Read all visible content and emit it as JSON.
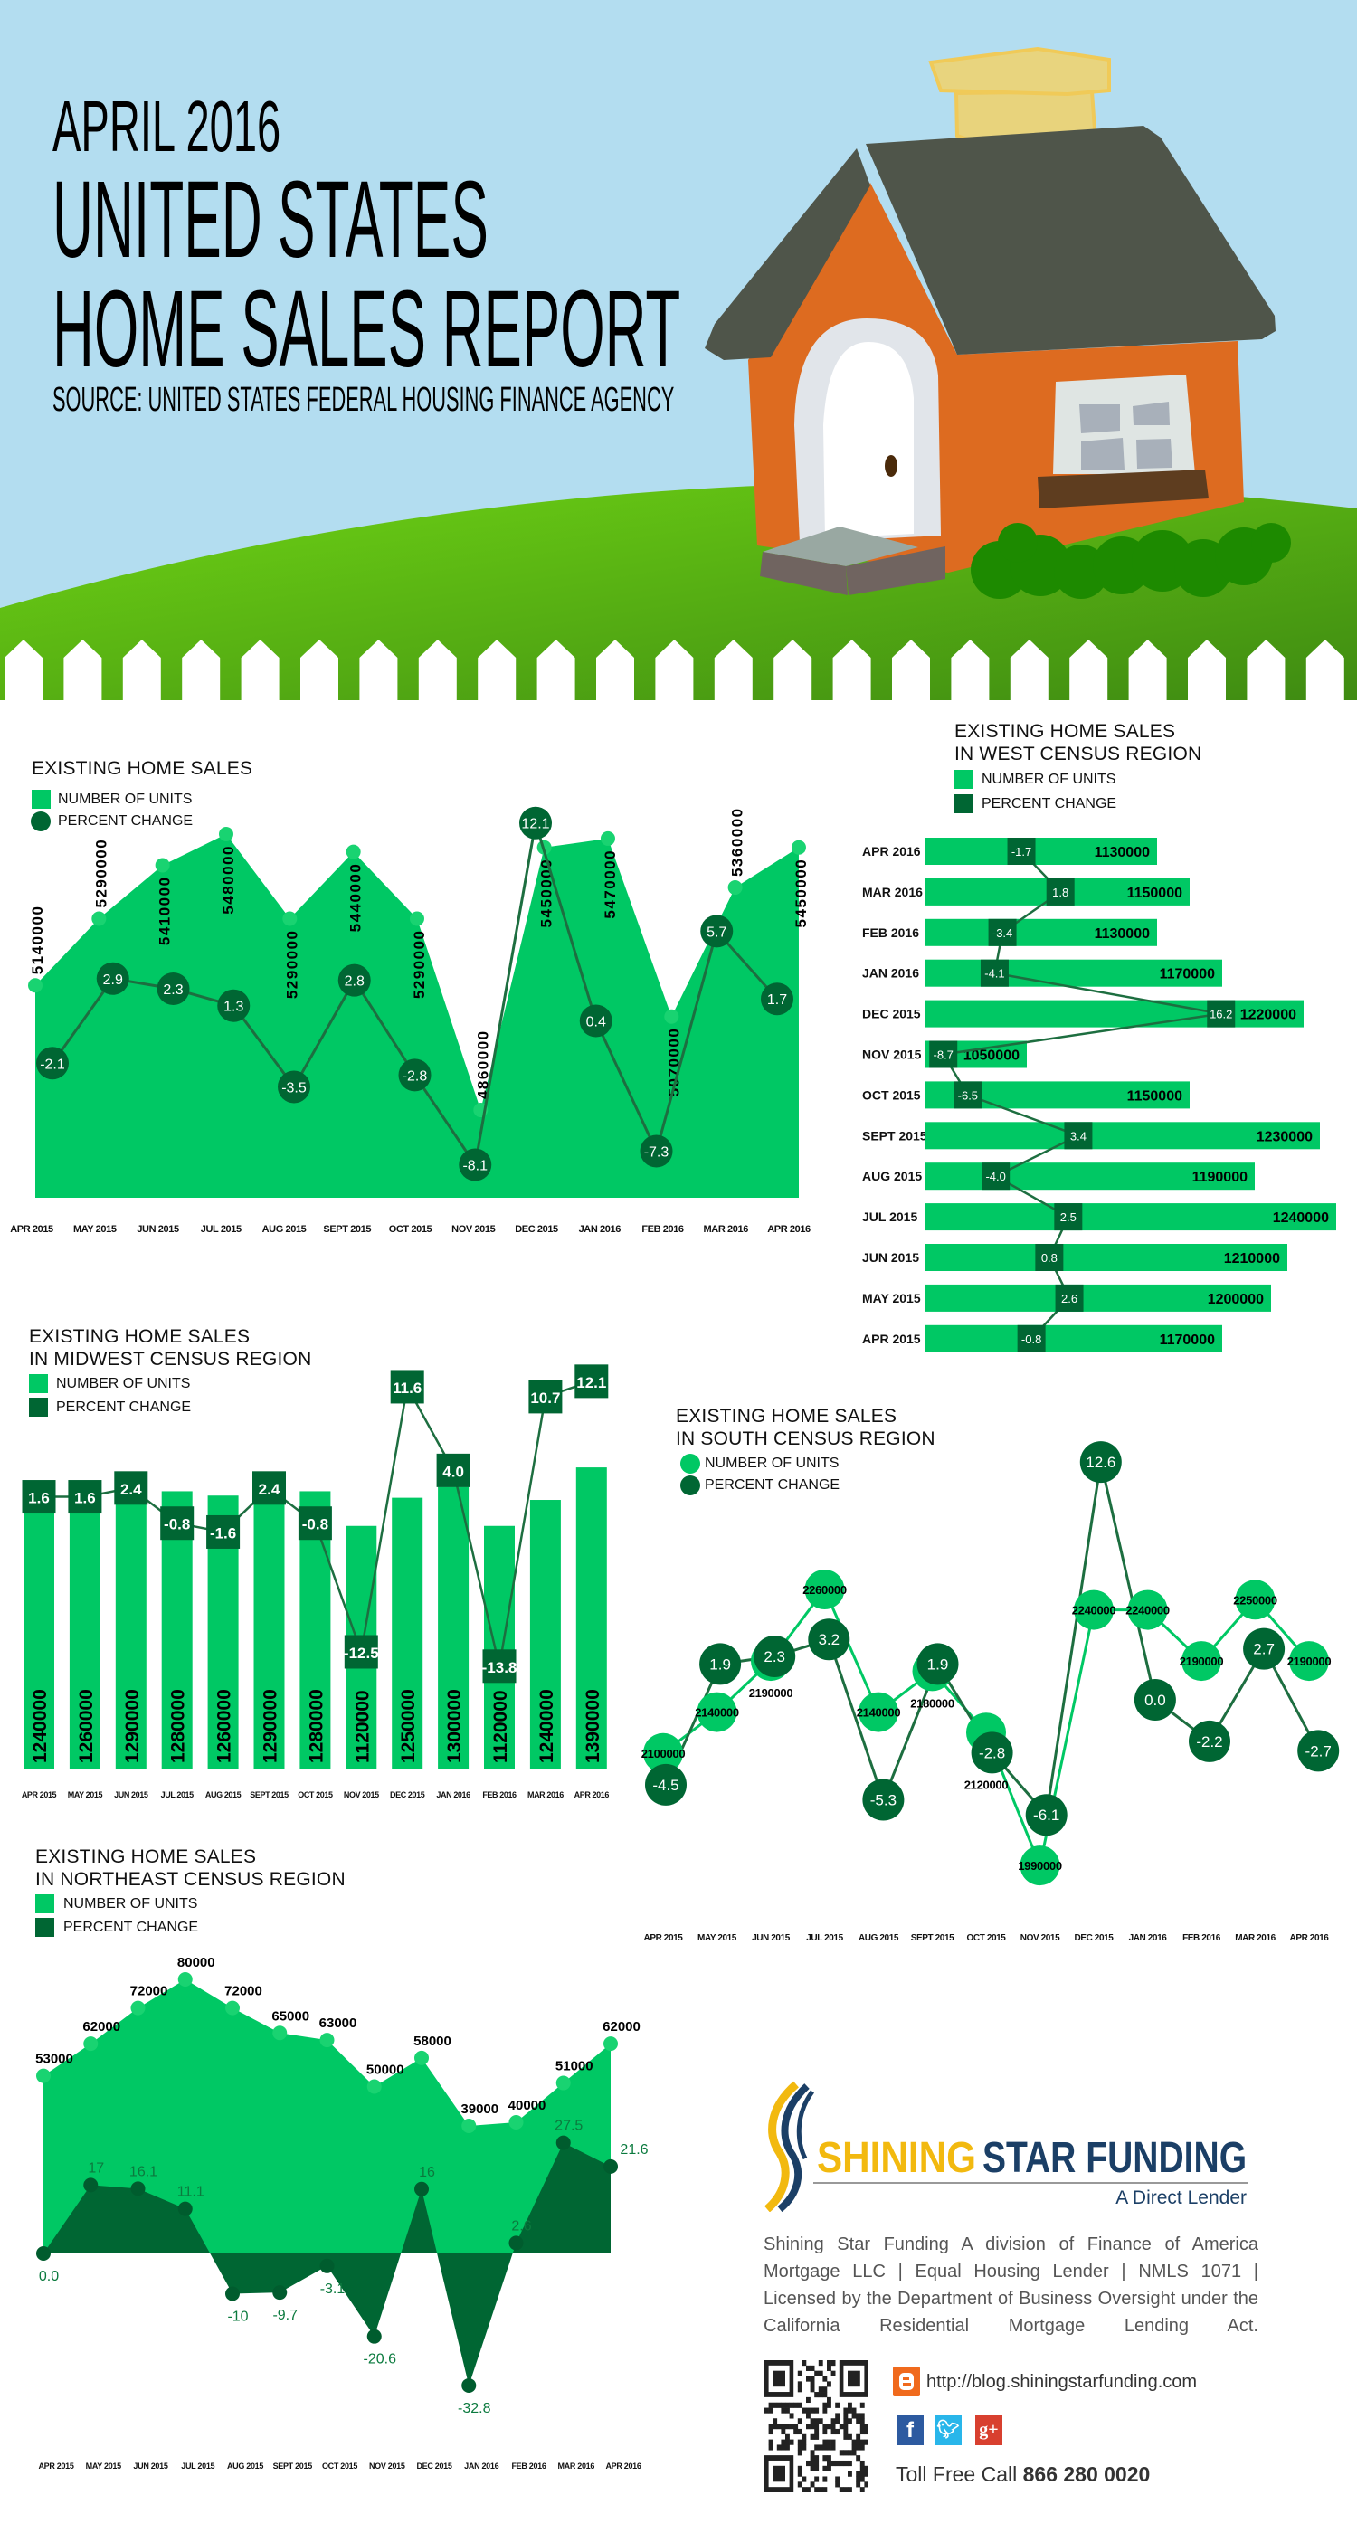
{
  "header": {
    "line1": "APRIL 2016",
    "line2": "UNITED STATES",
    "line3": "HOME SALES REPORT",
    "source": "SOURCE: UNITED STATES FEDERAL HOUSING FINANCE AGENCY"
  },
  "colors": {
    "sky": "#b3ddf0",
    "units": "#00c864",
    "units_point": "#19d371",
    "pct": "#006633",
    "pct_line": "#1d6e40",
    "pct_text": "#0b7a3e",
    "roof": "#4f554a",
    "house": "#dd6b20",
    "logo_yellow": "#f2b90f",
    "logo_navy": "#1b3f66"
  },
  "chart_data": [
    {
      "id": "national",
      "type": "area",
      "title": "EXISTING HOME SALES",
      "subtitle": "",
      "categories": [
        "APR 2015",
        "MAY 2015",
        "JUN 2015",
        "JUL 2015",
        "AUG 2015",
        "SEPT 2015",
        "OCT 2015",
        "NOV 2015",
        "DEC 2015",
        "JAN 2016",
        "FEB 2016",
        "MAR 2016",
        "APR 2016"
      ],
      "series": [
        {
          "name": "NUMBER OF UNITS",
          "values": [
            5140000,
            5290000,
            5410000,
            5480000,
            5290000,
            5440000,
            5290000,
            4860000,
            5450000,
            5470000,
            5070000,
            5360000,
            5450000
          ]
        },
        {
          "name": "PERCENT CHANGE",
          "values": [
            -2.1,
            2.9,
            2.3,
            1.3,
            -3.5,
            2.8,
            -2.8,
            -8.1,
            12.1,
            0.4,
            -7.3,
            5.7,
            1.7
          ]
        }
      ]
    },
    {
      "id": "west",
      "type": "bar",
      "orientation": "horizontal",
      "title": "EXISTING HOME SALES",
      "subtitle": "IN WEST CENSUS REGION",
      "categories": [
        "APR 2015",
        "MAY 2015",
        "JUN 2015",
        "JUL 2015",
        "AUG 2015",
        "SEPT 2015",
        "OCT 2015",
        "NOV 2015",
        "DEC 2015",
        "JAN 2016",
        "FEB 2016",
        "MAR 2016",
        "APR 2016"
      ],
      "series": [
        {
          "name": "NUMBER OF UNITS",
          "values": [
            1170000,
            1200000,
            1210000,
            1240000,
            1190000,
            1230000,
            1150000,
            1050000,
            1220000,
            1170000,
            1130000,
            1150000,
            1130000
          ]
        },
        {
          "name": "PERCENT CHANGE",
          "values": [
            -0.8,
            2.6,
            0.8,
            2.5,
            -4.0,
            3.4,
            -6.5,
            -8.7,
            16.2,
            -4.1,
            -3.4,
            1.8,
            -1.7
          ]
        }
      ]
    },
    {
      "id": "midwest",
      "type": "bar",
      "title": "EXISTING HOME SALES",
      "subtitle": "IN MIDWEST CENSUS REGION",
      "categories": [
        "APR 2015",
        "MAY 2015",
        "JUN 2015",
        "JUL 2015",
        "AUG 2015",
        "SEPT 2015",
        "OCT 2015",
        "NOV 2015",
        "DEC 2015",
        "JAN 2016",
        "FEB 2016",
        "MAR 2016",
        "APR 2016"
      ],
      "series": [
        {
          "name": "NUMBER OF UNITS",
          "values": [
            1240000,
            1260000,
            1290000,
            1280000,
            1260000,
            1290000,
            1280000,
            1120000,
            1250000,
            1300000,
            1120000,
            1240000,
            1390000
          ]
        },
        {
          "name": "PERCENT CHANGE",
          "values": [
            1.6,
            1.6,
            2.4,
            -0.8,
            -1.6,
            2.4,
            -0.8,
            -12.5,
            11.6,
            4.0,
            -13.8,
            10.7,
            12.1
          ]
        }
      ]
    },
    {
      "id": "south",
      "type": "line",
      "title": "EXISTING HOME SALES",
      "subtitle": "IN SOUTH CENSUS REGION",
      "categories": [
        "APR 2015",
        "MAY 2015",
        "JUN 2015",
        "JUL 2015",
        "AUG 2015",
        "SEPT 2015",
        "OCT 2015",
        "NOV 2015",
        "DEC 2015",
        "JAN 2016",
        "FEB 2016",
        "MAR 2016",
        "APR 2016"
      ],
      "series": [
        {
          "name": "NUMBER OF UNITS",
          "values": [
            2100000,
            2140000,
            2190000,
            2260000,
            2140000,
            2180000,
            2120000,
            1990000,
            2240000,
            2240000,
            2190000,
            2250000,
            2190000
          ]
        },
        {
          "name": "PERCENT CHANGE",
          "values": [
            -4.5,
            1.9,
            2.3,
            3.2,
            -5.3,
            1.9,
            -2.8,
            -6.1,
            12.6,
            0.0,
            -2.2,
            2.7,
            -2.7
          ]
        }
      ]
    },
    {
      "id": "northeast",
      "type": "area",
      "title": "EXISTING HOME SALES",
      "subtitle": "IN NORTHEAST CENSUS REGION",
      "categories": [
        "APR 2015",
        "MAY 2015",
        "JUN 2015",
        "JUL 2015",
        "AUG 2015",
        "SEPT 2015",
        "OCT 2015",
        "NOV 2015",
        "DEC 2015",
        "JAN 2016",
        "FEB 2016",
        "MAR 2016",
        "APR 2016"
      ],
      "series": [
        {
          "name": "NUMBER OF UNITS",
          "values": [
            53000,
            62000,
            72000,
            80000,
            72000,
            65000,
            63000,
            50000,
            58000,
            39000,
            40000,
            51000,
            62000
          ]
        },
        {
          "name": "PERCENT CHANGE",
          "values": [
            0.0,
            17,
            16.1,
            11.1,
            -10,
            -9.7,
            -3.1,
            -20.6,
            16,
            -32.8,
            2.6,
            27.5,
            21.6
          ],
          "labels": [
            "0.0",
            "17",
            "16.1",
            "11.1",
            "-10",
            "-9.7",
            "-3.1",
            "-20.6",
            "16",
            "-32.8",
            "2.6",
            "27.5",
            "21.6"
          ]
        }
      ]
    }
  ],
  "footer": {
    "logo_word1": "SHINING",
    "logo_word2": "STAR FUNDING",
    "logo_tagline": "A Direct Lender",
    "disclaimer": "Shining Star Funding A division of Finance of America Mortgage LLC | Equal Housing Lender | NMLS 1071 | Licensed by the Department of Business Oversight under the California Residential Mortgage Lending Act.",
    "blog_url": "http://blog.shiningstarfunding.com",
    "toll_label": "Toll Free Call",
    "toll_number": "866 280 0020",
    "icons": [
      "qr-code-icon",
      "blogger-icon",
      "facebook-icon",
      "twitter-icon",
      "google-plus-icon"
    ]
  }
}
